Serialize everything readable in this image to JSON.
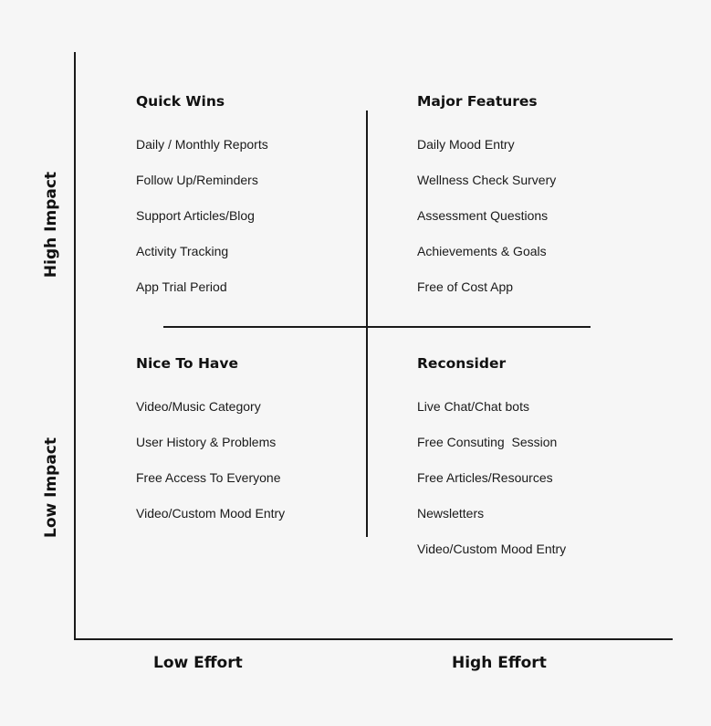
{
  "axes": {
    "high_impact": "High Impact",
    "low_impact": "Low Impact",
    "low_effort": "Low Effort",
    "high_effort": "High Effort"
  },
  "quadrants": {
    "quick_wins": {
      "title": "Quick Wins",
      "items": [
        "Daily / Monthly Reports",
        "Follow Up/Reminders",
        "Support Articles/Blog",
        "Activity Tracking",
        "App Trial Period"
      ]
    },
    "major_features": {
      "title": "Major Features",
      "items": [
        "Daily Mood Entry",
        "Wellness Check Survery",
        "Assessment Questions",
        "Achievements & Goals",
        "Free of Cost App"
      ]
    },
    "nice_to_have": {
      "title": "Nice To Have",
      "items": [
        "Video/Music Category",
        "User History & Problems",
        "Free Access To Everyone",
        "Video/Custom Mood Entry"
      ]
    },
    "reconsider": {
      "title": "Reconsider",
      "items": [
        "Live Chat/Chat bots",
        "Free Consuting  Session",
        "Free Articles/Resources",
        "Newsletters",
        "Video/Custom Mood Entry"
      ]
    }
  }
}
